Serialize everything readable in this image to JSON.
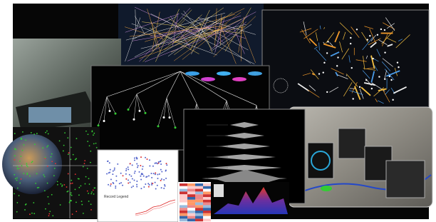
{
  "legend_panel": {
    "title": "Record Legend"
  }
}
